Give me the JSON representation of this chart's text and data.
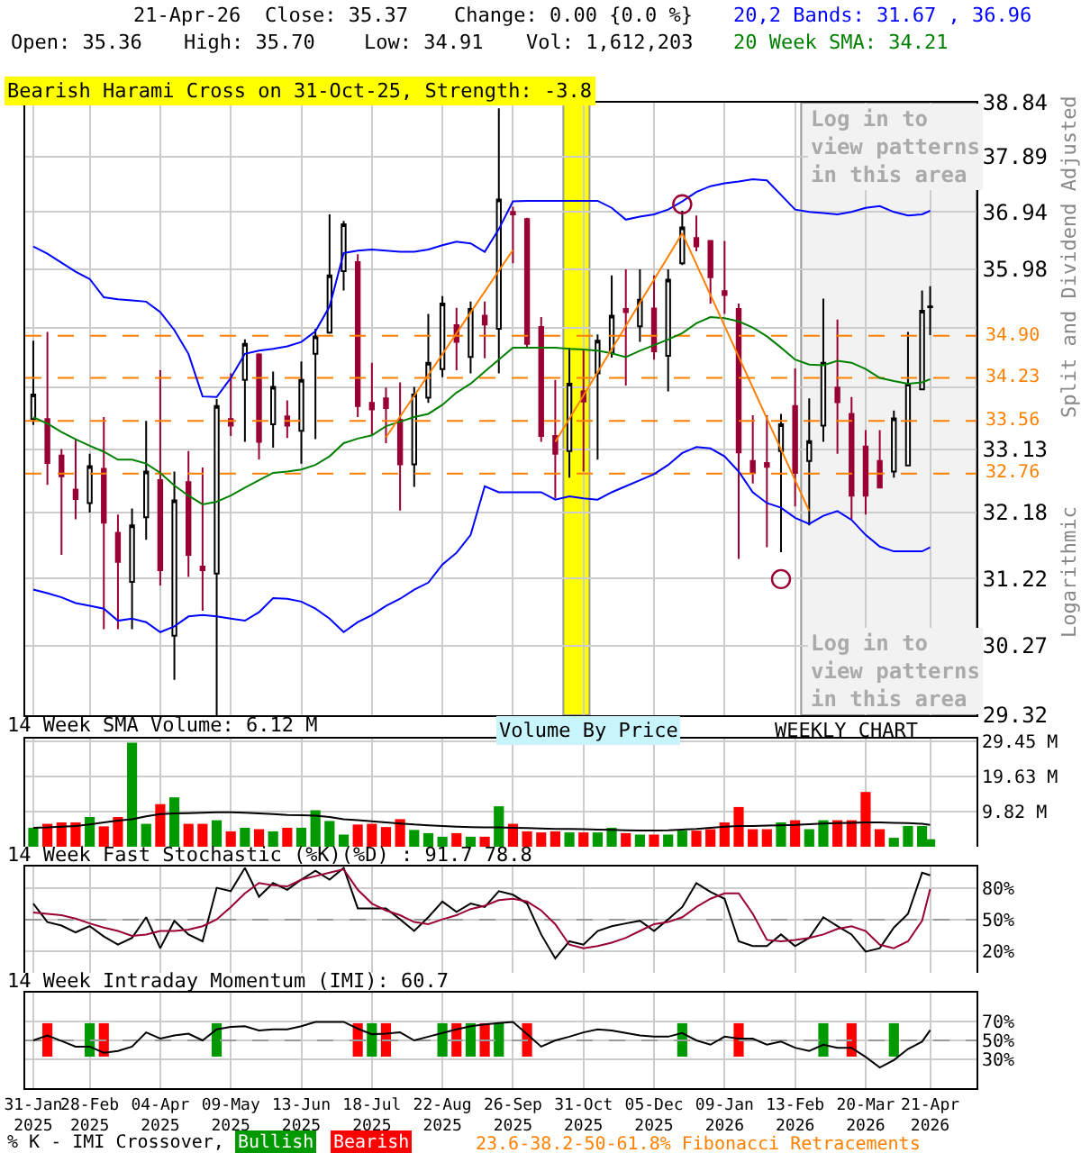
{
  "chart_data": [
    {
      "type": "candlestick",
      "title": "Bearish Harami Cross on 31-Oct-25, Strength: -3.8",
      "ylabel": "Split and Dividend Adjusted",
      "x": [
        "2025-01-31",
        "2025-02-07",
        "2025-02-14",
        "2025-02-21",
        "2025-02-28",
        "2025-03-07",
        "2025-03-14",
        "2025-03-21",
        "2025-03-28",
        "2025-04-04",
        "2025-04-11",
        "2025-04-18",
        "2025-04-25",
        "2025-05-02",
        "2025-05-09",
        "2025-05-16",
        "2025-05-23",
        "2025-05-30",
        "2025-06-06",
        "2025-06-13",
        "2025-06-20",
        "2025-06-27",
        "2025-07-04",
        "2025-07-11",
        "2025-07-18",
        "2025-07-25",
        "2025-08-01",
        "2025-08-08",
        "2025-08-15",
        "2025-08-22",
        "2025-08-29",
        "2025-09-05",
        "2025-09-12",
        "2025-09-19",
        "2025-09-26",
        "2025-10-03",
        "2025-10-10",
        "2025-10-17",
        "2025-10-24",
        "2025-10-31",
        "2025-11-07",
        "2025-11-14",
        "2025-11-21",
        "2025-11-28",
        "2025-12-05",
        "2025-12-12",
        "2025-12-19",
        "2025-12-26",
        "2026-01-02",
        "2026-01-09",
        "2026-01-16",
        "2026-01-23",
        "2026-01-30",
        "2026-02-06",
        "2026-02-13",
        "2026-02-20",
        "2026-02-27",
        "2026-03-06",
        "2026-03-13",
        "2026-03-20",
        "2026-03-27",
        "2026-04-03",
        "2026-04-10",
        "2026-04-17",
        "2026-04-21"
      ],
      "ohlc": [
        [
          33.59,
          34.82,
          33.5,
          33.97
        ],
        [
          33.59,
          34.96,
          32.59,
          32.92
        ],
        [
          33.03,
          33.13,
          31.56,
          32.72
        ],
        [
          32.52,
          33.29,
          32.08,
          32.38
        ],
        [
          32.32,
          33.06,
          32.18,
          32.87
        ],
        [
          32.83,
          33.62,
          30.5,
          32.03
        ],
        [
          31.88,
          32.15,
          30.5,
          31.46
        ],
        [
          31.17,
          32.24,
          30.5,
          31.99
        ],
        [
          32.11,
          33.56,
          31.78,
          32.79
        ],
        [
          32.66,
          34.35,
          31.12,
          31.34
        ],
        [
          30.41,
          32.79,
          29.8,
          32.36
        ],
        [
          32.63,
          33.1,
          31.24,
          31.56
        ],
        [
          31.39,
          32.85,
          30.76,
          31.34
        ],
        [
          31.29,
          33.9,
          29.32,
          33.79
        ],
        [
          33.59,
          34.3,
          33.33,
          33.49
        ],
        [
          34.2,
          34.84,
          33.24,
          34.77
        ],
        [
          34.6,
          34.62,
          32.97,
          33.24
        ],
        [
          33.51,
          34.33,
          33.15,
          34.09
        ],
        [
          33.63,
          33.88,
          33.3,
          33.49
        ],
        [
          33.41,
          34.49,
          32.91,
          34.2
        ],
        [
          34.61,
          35.01,
          33.28,
          34.89
        ],
        [
          34.95,
          36.9,
          34.93,
          35.88
        ],
        [
          35.95,
          36.79,
          35.63,
          36.73
        ],
        [
          36.1,
          36.23,
          33.62,
          33.79
        ],
        [
          33.84,
          34.47,
          33.35,
          33.74
        ],
        [
          33.91,
          34.08,
          33.22,
          33.76
        ],
        [
          33.58,
          34.16,
          32.21,
          32.9
        ],
        [
          32.9,
          34.09,
          32.56,
          33.97
        ],
        [
          33.92,
          35.25,
          33.84,
          34.47
        ],
        [
          34.37,
          35.54,
          34.24,
          35.42
        ],
        [
          35.07,
          35.35,
          34.35,
          34.8
        ],
        [
          34.56,
          35.45,
          34.3,
          35.33
        ],
        [
          35.22,
          35.45,
          34.54,
          35.08
        ],
        [
          35.01,
          38.74,
          34.3,
          37.15
        ],
        [
          36.94,
          37.03,
          36.08,
          36.9
        ],
        [
          36.82,
          36.84,
          34.71,
          34.77
        ],
        [
          35.04,
          35.2,
          33.24,
          33.33
        ],
        [
          33.33,
          34.2,
          32.39,
          33.06
        ],
        [
          33.1,
          34.71,
          32.7,
          34.14
        ],
        [
          34.02,
          34.68,
          32.79,
          33.86
        ],
        [
          34.3,
          34.92,
          32.97,
          34.82
        ],
        [
          34.63,
          35.88,
          34.55,
          35.22
        ],
        [
          35.33,
          35.98,
          34.11,
          35.28
        ],
        [
          35.05,
          35.98,
          34.8,
          35.48
        ],
        [
          35.34,
          35.88,
          34.52,
          34.65
        ],
        [
          34.58,
          35.98,
          34.02,
          35.81
        ],
        [
          36.08,
          36.96,
          36.05,
          36.68
        ],
        [
          36.5,
          36.88,
          36.28,
          36.36
        ],
        [
          36.45,
          36.45,
          35.42,
          35.85
        ],
        [
          35.62,
          36.45,
          35.25,
          35.56
        ],
        [
          35.33,
          35.42,
          31.5,
          33.08
        ],
        [
          32.95,
          33.65,
          32.61,
          32.77
        ],
        [
          32.92,
          33.65,
          31.67,
          32.86
        ],
        [
          33.1,
          33.67,
          31.6,
          33.51
        ],
        [
          33.79,
          34.38,
          32.27,
          32.77
        ],
        [
          32.95,
          33.91,
          31.99,
          33.25
        ],
        [
          33.49,
          35.5,
          33.24,
          34.47
        ],
        [
          34.08,
          35.16,
          33.06,
          33.85
        ],
        [
          33.67,
          33.93,
          32.08,
          32.43
        ],
        [
          33.17,
          33.42,
          32.15,
          32.43
        ],
        [
          32.95,
          33.42,
          32.55,
          32.55
        ],
        [
          32.79,
          33.72,
          32.7,
          33.6
        ],
        [
          32.88,
          34.96,
          32.88,
          34.14
        ],
        [
          34.05,
          35.63,
          34.05,
          35.3
        ],
        [
          35.36,
          35.7,
          34.91,
          35.37
        ]
      ],
      "series": [
        {
          "type": "line",
          "name": "20,2 Bands: 31.67 , 36.96",
          "color": "#0000ff",
          "values": [
            36.36,
            36.24,
            36.09,
            35.94,
            35.82,
            35.52,
            35.49,
            35.47,
            35.45,
            35.28,
            34.99,
            34.61,
            33.94,
            33.93,
            34.23,
            34.61,
            34.66,
            34.69,
            34.73,
            34.8,
            34.97,
            35.37,
            36.25,
            36.29,
            36.31,
            36.29,
            36.27,
            36.27,
            36.31,
            36.38,
            36.44,
            36.41,
            36.27,
            36.65,
            37.12,
            37.13,
            37.13,
            37.13,
            37.13,
            37.13,
            37.13,
            37.01,
            36.81,
            36.86,
            36.9,
            36.98,
            37.12,
            37.28,
            37.38,
            37.43,
            37.46,
            37.5,
            37.48,
            37.23,
            36.98,
            36.94,
            36.92,
            36.9,
            36.94,
            37.01,
            37.04,
            36.94,
            36.88,
            36.9,
            36.96
          ]
        },
        {
          "type": "line",
          "color": "#0000ff",
          "values": [
            31.06,
            31.01,
            30.95,
            30.87,
            30.83,
            30.79,
            30.62,
            30.65,
            30.6,
            30.46,
            30.54,
            30.68,
            30.7,
            30.68,
            30.65,
            30.62,
            30.74,
            30.94,
            30.93,
            30.89,
            30.79,
            30.65,
            30.46,
            30.6,
            30.7,
            30.83,
            30.93,
            31.06,
            31.16,
            31.42,
            31.59,
            31.85,
            32.57,
            32.48,
            32.48,
            32.48,
            32.48,
            32.37,
            32.42,
            32.39,
            32.37,
            32.48,
            32.57,
            32.66,
            32.75,
            32.89,
            33.07,
            33.16,
            33.14,
            33.02,
            32.79,
            32.48,
            32.32,
            32.25,
            32.1,
            32.01,
            32.13,
            32.2,
            32.07,
            31.85,
            31.68,
            31.61,
            31.61,
            31.61,
            31.67
          ]
        },
        {
          "type": "line",
          "name": "20 Week SMA: 34.21",
          "color": "#008000",
          "values": [
            33.62,
            33.52,
            33.39,
            33.28,
            33.18,
            33.09,
            32.97,
            32.97,
            32.91,
            32.77,
            32.58,
            32.43,
            32.3,
            32.34,
            32.43,
            32.55,
            32.66,
            32.77,
            32.79,
            32.82,
            32.89,
            33.02,
            33.22,
            33.29,
            33.34,
            33.48,
            33.55,
            33.62,
            33.67,
            33.81,
            34.0,
            34.14,
            34.33,
            34.52,
            34.71,
            34.71,
            34.71,
            34.71,
            34.69,
            34.68,
            34.66,
            34.62,
            34.56,
            34.66,
            34.75,
            34.84,
            34.94,
            35.1,
            35.2,
            35.18,
            35.13,
            35.03,
            34.89,
            34.71,
            34.52,
            34.44,
            34.43,
            34.5,
            34.47,
            34.37,
            34.23,
            34.18,
            34.14,
            34.16,
            34.21
          ]
        },
        {
          "type": "line",
          "color": "#ff8000",
          "x": [
            "2025-07-25",
            "2025-09-26"
          ],
          "values": [
            33.31,
            36.3
          ]
        },
        {
          "type": "line",
          "color": "#ff8000",
          "x": [
            "2025-10-17",
            "2025-12-19",
            "2026-02-20"
          ],
          "values": [
            33.24,
            36.58,
            32.2
          ]
        },
        {
          "type": "scatter",
          "color": "#990033",
          "marker": "circle",
          "x": [
            "2025-12-19",
            "2026-02-06"
          ],
          "values": [
            37.07,
            31.21
          ]
        }
      ],
      "log": true,
      "ylim": [
        29.32,
        38.84
      ],
      "yticks": [
        29.32,
        30.27,
        31.22,
        32.18,
        33.13,
        {
          "value": 34.08,
          "label": null
        },
        {
          "value": 35.03,
          "label": null
        },
        35.98,
        36.94,
        37.89,
        38.84
      ],
      "xlim": [
        "2025-01-27",
        "2026-05-14"
      ],
      "xticks": [
        {
          "value": "2025-01-31",
          "label": null
        },
        {
          "value": "2025-02-28",
          "label": null
        },
        {
          "value": "2025-04-04",
          "label": null
        },
        {
          "value": "2025-05-09",
          "label": null
        },
        {
          "value": "2025-06-13",
          "label": null
        },
        {
          "value": "2025-07-18",
          "label": null
        },
        {
          "value": "2025-08-22",
          "label": null
        },
        {
          "value": "2025-09-26",
          "label": null
        },
        {
          "value": "2025-10-31",
          "label": null
        },
        {
          "value": "2025-12-05",
          "label": null
        },
        {
          "value": "2026-01-09",
          "label": null
        },
        {
          "value": "2026-02-13",
          "label": null
        },
        {
          "value": "2026-03-20",
          "label": null
        },
        {
          "value": "2026-04-21",
          "label": null
        }
      ],
      "tick_labels": "y",
      "grid": true,
      "legend": "top right",
      "ref_lines": [
        {
          "axis": "y",
          "value": 34.9,
          "label": "34.90",
          "color": "#ff8000",
          "line_style": "dashed"
        },
        {
          "axis": "y",
          "value": 34.23,
          "label": "34.23",
          "color": "#ff8000",
          "line_style": "dashed"
        },
        {
          "axis": "y",
          "value": 33.56,
          "label": "33.56",
          "color": "#ff8000",
          "line_style": "dashed"
        },
        {
          "axis": "y",
          "value": 32.76,
          "label": "32.76",
          "color": "#ff8000",
          "line_style": "dashed"
        }
      ],
      "bands": [
        {
          "axis": "x",
          "from": "2025-10-21",
          "to": "2025-11-03",
          "color": "#ffff00"
        },
        {
          "axis": "x",
          "from": "2026-02-16",
          "to": "2026-05-14",
          "color": "#f2f2f2",
          "label": "Log in to view patterns in this area"
        }
      ],
      "annotations": [
        "21-Apr-26",
        "Close: 35.37",
        "Change: 0.00 {0.0 %}",
        "Open: 35.36",
        "High: 35.70",
        "Low: 34.91",
        "Vol: 1,612,203",
        "Logarithmic"
      ]
    },
    {
      "type": "bar",
      "title": "14 Week SMA Volume: 6.12 M",
      "x": [
        "2025-01-31",
        "2025-02-07",
        "2025-02-14",
        "2025-02-21",
        "2025-02-28",
        "2025-03-07",
        "2025-03-14",
        "2025-03-21",
        "2025-03-28",
        "2025-04-04",
        "2025-04-11",
        "2025-04-18",
        "2025-04-25",
        "2025-05-02",
        "2025-05-09",
        "2025-05-16",
        "2025-05-23",
        "2025-05-30",
        "2025-06-06",
        "2025-06-13",
        "2025-06-20",
        "2025-06-27",
        "2025-07-04",
        "2025-07-11",
        "2025-07-18",
        "2025-07-25",
        "2025-08-01",
        "2025-08-08",
        "2025-08-15",
        "2025-08-22",
        "2025-08-29",
        "2025-09-05",
        "2025-09-12",
        "2025-09-19",
        "2025-09-26",
        "2025-10-03",
        "2025-10-10",
        "2025-10-17",
        "2025-10-24",
        "2025-10-31",
        "2025-11-07",
        "2025-11-14",
        "2025-11-21",
        "2025-11-28",
        "2025-12-05",
        "2025-12-12",
        "2025-12-19",
        "2025-12-26",
        "2026-01-02",
        "2026-01-09",
        "2026-01-16",
        "2026-01-23",
        "2026-01-30",
        "2026-02-06",
        "2026-02-13",
        "2026-02-20",
        "2026-02-27",
        "2026-03-06",
        "2026-03-13",
        "2026-03-20",
        "2026-03-27",
        "2026-04-03",
        "2026-04-10",
        "2026-04-17",
        "2026-04-21"
      ],
      "series": [
        {
          "colors": [
            "#009900",
            "#ff0000",
            "#ff0000",
            "#ff0000",
            "#009900",
            "#ff0000",
            "#ff0000",
            "#009900",
            "#009900",
            "#ff0000",
            "#009900",
            "#ff0000",
            "#ff0000",
            "#009900",
            "#ff0000",
            "#009900",
            "#ff0000",
            "#009900",
            "#ff0000",
            "#009900",
            "#009900",
            "#009900",
            "#009900",
            "#ff0000",
            "#ff0000",
            "#ff0000",
            "#ff0000",
            "#009900",
            "#009900",
            "#009900",
            "#ff0000",
            "#009900",
            "#ff0000",
            "#009900",
            "#ff0000",
            "#ff0000",
            "#ff0000",
            "#ff0000",
            "#009900",
            "#ff0000",
            "#009900",
            "#009900",
            "#ff0000",
            "#009900",
            "#ff0000",
            "#009900",
            "#009900",
            "#ff0000",
            "#ff0000",
            "#ff0000",
            "#ff0000",
            "#ff0000",
            "#ff0000",
            "#009900",
            "#ff0000",
            "#009900",
            "#009900",
            "#ff0000",
            "#ff0000",
            "#ff0000",
            "#ff0000",
            "#009900",
            "#009900",
            "#009900",
            "#009900"
          ],
          "values": [
            5.3,
            6.4,
            6.8,
            6.8,
            8.3,
            5.7,
            8.3,
            29.1,
            6.4,
            11.9,
            13.8,
            6.4,
            6.4,
            7.4,
            4.3,
            5.3,
            4.9,
            4.3,
            5.3,
            5.3,
            10.2,
            7.2,
            3.4,
            6.2,
            6.4,
            5.5,
            7.7,
            4.7,
            3.8,
            2.8,
            3.8,
            2.8,
            2.8,
            11.3,
            6.4,
            4.3,
            4.0,
            4.3,
            4.0,
            4.0,
            4.0,
            5.3,
            3.8,
            3.4,
            3.4,
            3.4,
            4.5,
            4.5,
            4.9,
            6.8,
            11.1,
            4.9,
            4.9,
            6.8,
            7.4,
            4.9,
            7.4,
            7.4,
            7.4,
            15.3,
            4.9,
            2.5,
            5.8,
            5.8,
            2.1
          ]
        },
        {
          "type": "line",
          "color": "#000000",
          "values": [
            5.3,
            5.4,
            5.6,
            5.8,
            6.2,
            6.8,
            7.3,
            7.7,
            8.5,
            9.1,
            9.3,
            9.4,
            9.5,
            9.6,
            9.6,
            9.5,
            9.3,
            9.1,
            8.9,
            8.8,
            8.7,
            8.3,
            7.7,
            7.4,
            7.1,
            6.8,
            6.5,
            6.2,
            6.0,
            5.8,
            5.6,
            5.5,
            5.4,
            5.4,
            5.3,
            5.2,
            5.1,
            5.0,
            5.0,
            4.9,
            4.8,
            4.7,
            4.6,
            4.5,
            4.5,
            4.6,
            4.8,
            5.0,
            5.3,
            5.6,
            5.8,
            5.8,
            5.9,
            6.0,
            6.1,
            6.3,
            6.5,
            6.6,
            6.7,
            6.8,
            6.8,
            6.7,
            6.6,
            6.4,
            6.12
          ]
        }
      ],
      "ylim": [
        0,
        30.2
      ],
      "yticks": [
        {
          "value": 9.82,
          "label": "9.82 M"
        },
        {
          "value": 19.63,
          "label": "19.63 M"
        },
        {
          "value": 29.45,
          "label": "29.45 M"
        }
      ],
      "xlim": [
        "2025-01-27",
        "2026-05-14"
      ],
      "xticks": [
        {
          "value": "2025-01-31",
          "label": null
        },
        {
          "value": "2025-02-28",
          "label": null
        },
        {
          "value": "2025-04-04",
          "label": null
        },
        {
          "value": "2025-05-09",
          "label": null
        },
        {
          "value": "2025-06-13",
          "label": null
        },
        {
          "value": "2025-07-18",
          "label": null
        },
        {
          "value": "2025-08-22",
          "label": null
        },
        {
          "value": "2025-09-26",
          "label": null
        },
        {
          "value": "2025-10-31",
          "label": null
        },
        {
          "value": "2025-12-05",
          "label": null
        },
        {
          "value": "2026-01-09",
          "label": null
        },
        {
          "value": "2026-02-13",
          "label": null
        },
        {
          "value": "2026-03-20",
          "label": null
        },
        {
          "value": "2026-04-21",
          "label": null
        }
      ],
      "tick_labels": "y",
      "grid": true,
      "annotations": [
        "Volume By Price",
        "WEEKLY CHART"
      ]
    },
    {
      "type": "line",
      "title": "14 Week Fast Stochastic (%K)(%D) : 91.7 78.8",
      "x": [
        "2025-01-31",
        "2025-02-07",
        "2025-02-14",
        "2025-02-21",
        "2025-02-28",
        "2025-03-07",
        "2025-03-14",
        "2025-03-21",
        "2025-03-28",
        "2025-04-04",
        "2025-04-11",
        "2025-04-18",
        "2025-04-25",
        "2025-05-02",
        "2025-05-09",
        "2025-05-16",
        "2025-05-23",
        "2025-05-30",
        "2025-06-06",
        "2025-06-13",
        "2025-06-20",
        "2025-06-27",
        "2025-07-04",
        "2025-07-11",
        "2025-07-18",
        "2025-07-25",
        "2025-08-01",
        "2025-08-08",
        "2025-08-15",
        "2025-08-22",
        "2025-08-29",
        "2025-09-05",
        "2025-09-12",
        "2025-09-19",
        "2025-09-26",
        "2025-10-03",
        "2025-10-10",
        "2025-10-17",
        "2025-10-24",
        "2025-10-31",
        "2025-11-07",
        "2025-11-14",
        "2025-11-21",
        "2025-11-28",
        "2025-12-05",
        "2025-12-12",
        "2025-12-19",
        "2025-12-26",
        "2026-01-02",
        "2026-01-09",
        "2026-01-16",
        "2026-01-23",
        "2026-01-30",
        "2026-02-06",
        "2026-02-13",
        "2026-02-20",
        "2026-02-27",
        "2026-03-06",
        "2026-03-13",
        "2026-03-20",
        "2026-03-27",
        "2026-04-03",
        "2026-04-10",
        "2026-04-17",
        "2026-04-21"
      ],
      "series": [
        {
          "color": "#000000",
          "values": [
            65.2,
            47.8,
            44.5,
            38.1,
            43.9,
            34.2,
            26.5,
            32.9,
            52.3,
            23.2,
            49.0,
            36.1,
            29.7,
            80.0,
            76.8,
            98.7,
            71.6,
            84.5,
            78.1,
            87.7,
            96.1,
            87.7,
            98.7,
            60.7,
            60.7,
            60.7,
            50.3,
            39.4,
            52.3,
            67.1,
            57.4,
            65.2,
            61.9,
            76.8,
            73.5,
            65.2,
            36.1,
            13.6,
            29.7,
            26.5,
            39.4,
            43.9,
            46.5,
            49.0,
            39.4,
            50.3,
            61.9,
            84.5,
            76.1,
            69.7,
            29.7,
            25.2,
            25.2,
            36.1,
            25.2,
            32.9,
            52.3,
            43.9,
            36.1,
            20.0,
            23.2,
            42.6,
            55.5,
            94.2,
            91.7
          ]
        },
        {
          "color": "#990033",
          "values": [
            56.8,
            55.5,
            54.2,
            51.0,
            46.5,
            42.6,
            39.4,
            34.8,
            36.1,
            39.4,
            39.4,
            40.7,
            43.9,
            50.3,
            61.9,
            74.8,
            84.5,
            82.3,
            81.3,
            87.7,
            91.0,
            94.2,
            97.4,
            78.1,
            65.2,
            58.7,
            54.2,
            47.8,
            45.8,
            50.3,
            54.2,
            60.0,
            63.2,
            68.4,
            69.7,
            67.1,
            58.7,
            45.8,
            26.5,
            23.2,
            25.2,
            28.4,
            32.9,
            39.4,
            45.8,
            47.8,
            52.3,
            61.9,
            69.7,
            74.8,
            74.8,
            55.5,
            31.0,
            29.7,
            31.0,
            32.9,
            36.1,
            41.3,
            43.9,
            39.4,
            26.5,
            23.2,
            29.7,
            49.0,
            78.8
          ]
        }
      ],
      "ylim": [
        0,
        100
      ],
      "yticks": [
        {
          "value": 20,
          "label": "20%"
        },
        {
          "value": 50,
          "label": "50%"
        },
        {
          "value": 80,
          "label": "80%"
        }
      ],
      "xlim": [
        "2025-01-27",
        "2026-05-14"
      ],
      "xticks": [
        {
          "value": "2025-01-31",
          "label": null
        },
        {
          "value": "2025-02-28",
          "label": null
        },
        {
          "value": "2025-04-04",
          "label": null
        },
        {
          "value": "2025-05-09",
          "label": null
        },
        {
          "value": "2025-06-13",
          "label": null
        },
        {
          "value": "2025-07-18",
          "label": null
        },
        {
          "value": "2025-08-22",
          "label": null
        },
        {
          "value": "2025-09-26",
          "label": null
        },
        {
          "value": "2025-10-31",
          "label": null
        },
        {
          "value": "2025-12-05",
          "label": null
        },
        {
          "value": "2026-01-09",
          "label": null
        },
        {
          "value": "2026-02-13",
          "label": null
        },
        {
          "value": "2026-03-20",
          "label": null
        },
        {
          "value": "2026-04-21",
          "label": null
        }
      ],
      "tick_labels": "y",
      "grid": true,
      "ref_lines": [
        {
          "axis": "y",
          "value": 50,
          "color": "#999999",
          "line_style": "dashed"
        }
      ]
    },
    {
      "type": "line",
      "title": "14 Week Intraday Momentum (IMI): 60.7",
      "x": [
        "2025-01-31",
        "2025-02-07",
        "2025-02-14",
        "2025-02-21",
        "2025-02-28",
        "2025-03-07",
        "2025-03-14",
        "2025-03-21",
        "2025-03-28",
        "2025-04-04",
        "2025-04-11",
        "2025-04-18",
        "2025-04-25",
        "2025-05-02",
        "2025-05-09",
        "2025-05-16",
        "2025-05-23",
        "2025-05-30",
        "2025-06-06",
        "2025-06-13",
        "2025-06-20",
        "2025-06-27",
        "2025-07-04",
        "2025-07-11",
        "2025-07-18",
        "2025-07-25",
        "2025-08-01",
        "2025-08-08",
        "2025-08-15",
        "2025-08-22",
        "2025-08-29",
        "2025-09-05",
        "2025-09-12",
        "2025-09-19",
        "2025-09-26",
        "2025-10-03",
        "2025-10-10",
        "2025-10-17",
        "2025-10-24",
        "2025-10-31",
        "2025-11-07",
        "2025-11-14",
        "2025-11-21",
        "2025-11-28",
        "2025-12-05",
        "2025-12-12",
        "2025-12-19",
        "2025-12-26",
        "2026-01-02",
        "2026-01-09",
        "2026-01-16",
        "2026-01-23",
        "2026-01-30",
        "2026-02-06",
        "2026-02-13",
        "2026-02-20",
        "2026-02-27",
        "2026-03-06",
        "2026-03-13",
        "2026-03-20",
        "2026-03-27",
        "2026-04-03",
        "2026-04-10",
        "2026-04-17",
        "2026-04-21"
      ],
      "series": [
        {
          "type": "bar",
          "name": "Bullish",
          "color": "#009900",
          "x": [
            "2025-02-28",
            "2025-05-02",
            "2025-07-18",
            "2025-08-22",
            "2025-09-05",
            "2025-09-19",
            "2025-12-19",
            "2026-02-27",
            "2026-04-03"
          ],
          "base": [
            33,
            33,
            33,
            33,
            33,
            33,
            33,
            33,
            33
          ],
          "values": [
            35,
            35,
            35,
            35,
            35,
            35,
            35,
            35,
            35
          ]
        },
        {
          "type": "bar",
          "name": "Bearish",
          "color": "#ff0000",
          "x": [
            "2025-02-07",
            "2025-03-07",
            "2025-07-11",
            "2025-07-25",
            "2025-08-29",
            "2025-09-12",
            "2025-10-03",
            "2026-01-16",
            "2026-03-13"
          ],
          "base": [
            33,
            33,
            33,
            33,
            33,
            33,
            33,
            33,
            33
          ],
          "values": [
            35,
            35,
            35,
            35,
            35,
            35,
            35,
            35,
            35
          ]
        },
        {
          "color": "#000000",
          "values": [
            50.0,
            55.2,
            49.4,
            43.5,
            43.5,
            37.1,
            39.0,
            43.5,
            58.4,
            51.9,
            55.2,
            57.1,
            50.0,
            61.6,
            64.2,
            64.8,
            60.3,
            61.6,
            61.6,
            64.8,
            69.4,
            69.4,
            69.4,
            62.3,
            56.5,
            57.1,
            58.4,
            50.0,
            53.9,
            57.7,
            61.6,
            64.8,
            66.8,
            68.1,
            69.4,
            56.5,
            43.5,
            50.0,
            53.9,
            58.4,
            61.6,
            60.3,
            57.7,
            55.2,
            53.9,
            53.9,
            57.7,
            50.0,
            45.5,
            53.9,
            51.9,
            51.9,
            45.5,
            48.7,
            42.3,
            39.0,
            45.5,
            42.3,
            42.3,
            32.6,
            21.6,
            29.4,
            41.0,
            48.7,
            60.7
          ]
        }
      ],
      "ylim": [
        0,
        100
      ],
      "yticks": [
        {
          "value": 30,
          "label": "30%"
        },
        {
          "value": 50,
          "label": "50%"
        },
        {
          "value": 70,
          "label": "70%"
        }
      ],
      "xlim": [
        "2025-01-27",
        "2026-05-14"
      ],
      "xticks": [
        {
          "value": "2025-01-31",
          "label": "31-Jan\n2025"
        },
        {
          "value": "2025-02-28",
          "label": "28-Feb\n2025"
        },
        {
          "value": "2025-04-04",
          "label": "04-Apr\n2025"
        },
        {
          "value": "2025-05-09",
          "label": "09-May\n2025"
        },
        {
          "value": "2025-06-13",
          "label": "13-Jun\n2025"
        },
        {
          "value": "2025-07-18",
          "label": "18-Jul\n2025"
        },
        {
          "value": "2025-08-22",
          "label": "22-Aug\n2025"
        },
        {
          "value": "2025-09-26",
          "label": "26-Sep\n2025"
        },
        {
          "value": "2025-10-31",
          "label": "31-Oct\n2025"
        },
        {
          "value": "2025-12-05",
          "label": "05-Dec\n2025"
        },
        {
          "value": "2026-01-09",
          "label": "09-Jan\n2026"
        },
        {
          "value": "2026-02-13",
          "label": "13-Feb\n2026"
        },
        {
          "value": "2026-03-20",
          "label": "20-Mar\n2026"
        },
        {
          "value": "2026-04-21",
          "label": "21-Apr\n2026"
        }
      ],
      "grid": true,
      "legend": "bottom",
      "legend_title": "% K - IMI Crossover,",
      "ref_lines": [
        {
          "axis": "y",
          "value": 50,
          "color": "#999999",
          "line_style": "dashed"
        }
      ],
      "annotations": [
        "23.6-38.2-50-61.8% Fibonacci Retracements"
      ]
    }
  ]
}
